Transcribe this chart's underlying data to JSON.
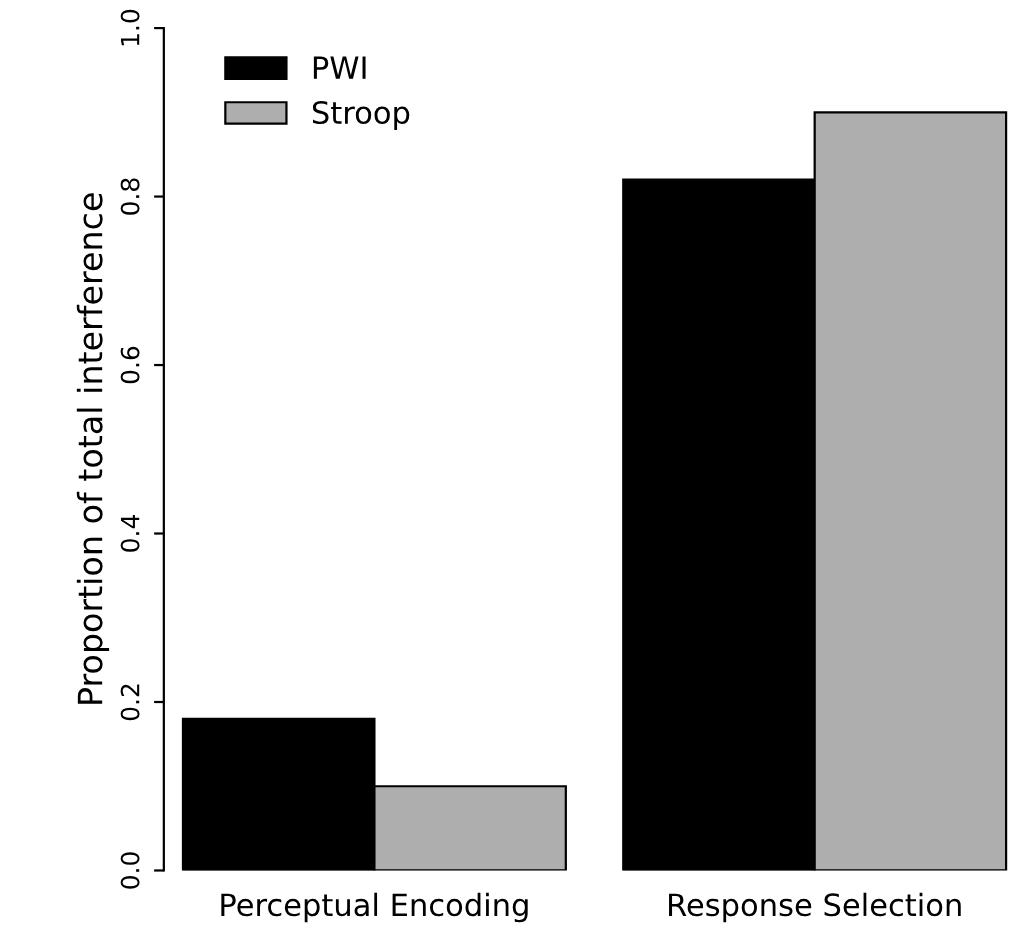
{
  "chart_data": {
    "type": "bar",
    "ylabel": "Proportion of total interference",
    "categories": [
      "Perceptual Encoding",
      "Response Selection"
    ],
    "series": [
      {
        "name": "PWI",
        "color": "#000000",
        "values": [
          0.18,
          0.82
        ]
      },
      {
        "name": "Stroop",
        "color": "#aeaeae",
        "values": [
          0.1,
          0.9
        ]
      }
    ],
    "ylim": [
      0,
      1
    ],
    "yticks": [
      {
        "value": 0,
        "label": "0.0"
      },
      0.2,
      0.4,
      0.6,
      0.8,
      {
        "value": 1,
        "label": "1.0"
      }
    ],
    "grid": false,
    "legend": "top left"
  }
}
